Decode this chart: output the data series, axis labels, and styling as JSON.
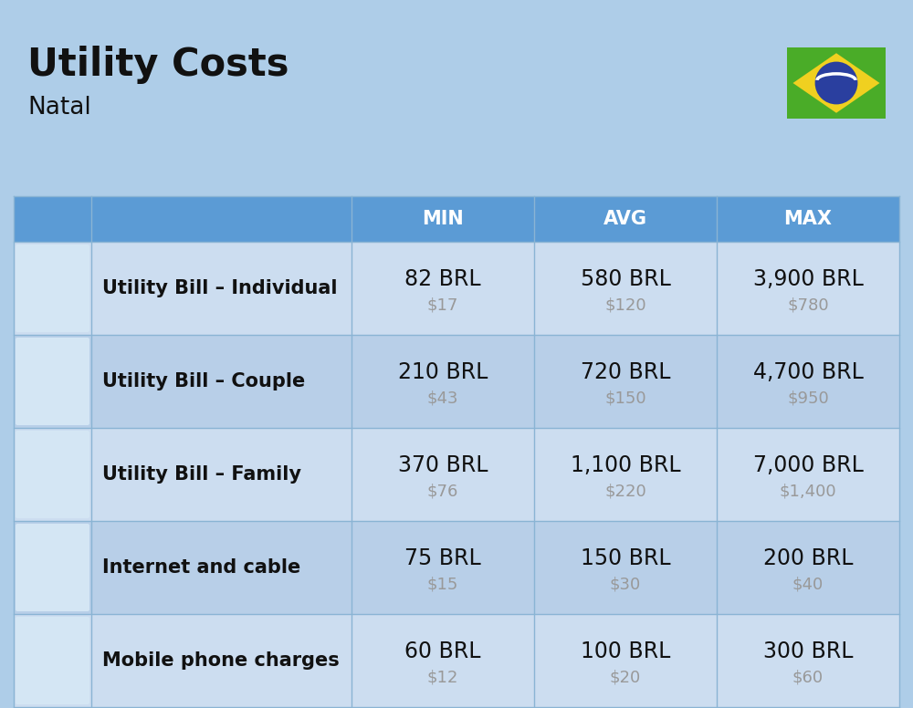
{
  "title": "Utility Costs",
  "subtitle": "Natal",
  "background_color": "#aecde8",
  "header_bg_color": "#5b9bd5",
  "header_text_color": "#ffffff",
  "row_bg_color_odd": "#ccddf0",
  "row_bg_color_even": "#b8cfe8",
  "header_left_bg": "#5b9bd5",
  "col_header_labels": [
    "MIN",
    "AVG",
    "MAX"
  ],
  "rows": [
    {
      "label": "Utility Bill – Individual",
      "min_brl": "82 BRL",
      "min_usd": "$17",
      "avg_brl": "580 BRL",
      "avg_usd": "$120",
      "max_brl": "3,900 BRL",
      "max_usd": "$780"
    },
    {
      "label": "Utility Bill – Couple",
      "min_brl": "210 BRL",
      "min_usd": "$43",
      "avg_brl": "720 BRL",
      "avg_usd": "$150",
      "max_brl": "4,700 BRL",
      "max_usd": "$950"
    },
    {
      "label": "Utility Bill – Family",
      "min_brl": "370 BRL",
      "min_usd": "$76",
      "avg_brl": "1,100 BRL",
      "avg_usd": "$220",
      "max_brl": "7,000 BRL",
      "max_usd": "$1,400"
    },
    {
      "label": "Internet and cable",
      "min_brl": "75 BRL",
      "min_usd": "$15",
      "avg_brl": "150 BRL",
      "avg_usd": "$30",
      "max_brl": "200 BRL",
      "max_usd": "$40"
    },
    {
      "label": "Mobile phone charges",
      "min_brl": "60 BRL",
      "min_usd": "$12",
      "avg_brl": "100 BRL",
      "avg_usd": "$20",
      "max_brl": "300 BRL",
      "max_usd": "$60"
    }
  ],
  "title_fontsize": 30,
  "subtitle_fontsize": 19,
  "header_fontsize": 15,
  "label_fontsize": 15,
  "value_fontsize": 17,
  "usd_fontsize": 13,
  "usd_color": "#999999",
  "divider_color": "#8ab4d4",
  "flag_green": "#4aac28",
  "flag_yellow": "#f0d020",
  "flag_blue": "#2a3f9f",
  "flag_white": "#ffffff"
}
